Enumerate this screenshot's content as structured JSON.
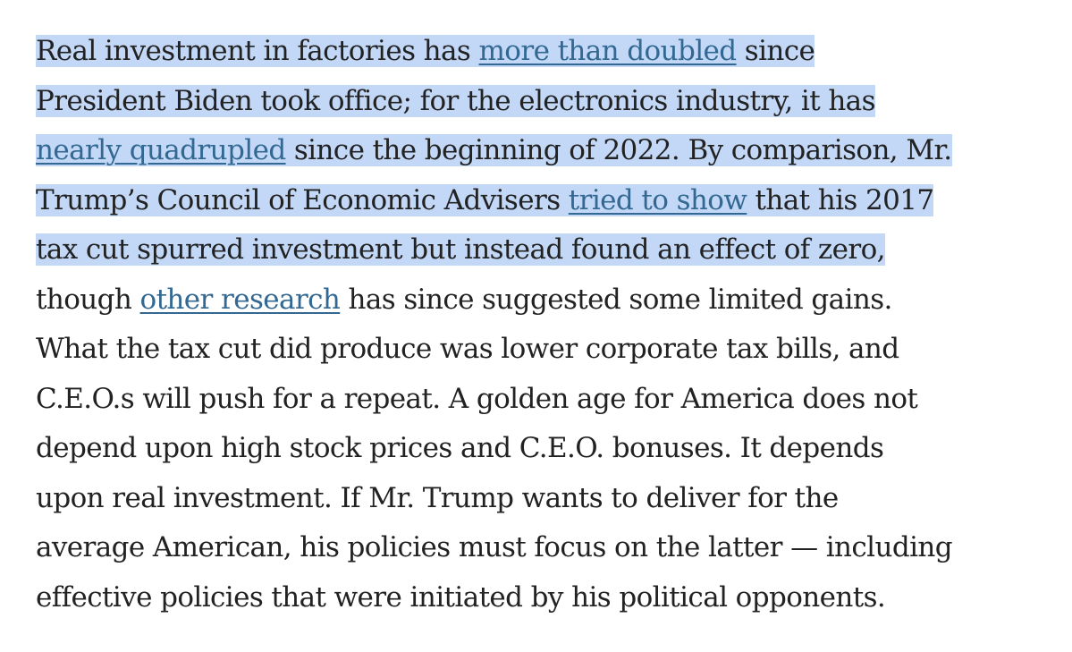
{
  "article": {
    "p1": "Real investment in factories has ",
    "link_doubled": "more than doubled",
    "p2": " since",
    "l2": "President Biden took office; for the electronics industry, it has",
    "link_quadrupled": "nearly quadrupled",
    "p3": " since the beginning of 2022. By comparison, Mr.",
    "p4": "Trump’s Council of Economic Advisers ",
    "link_tried": "tried to show",
    "p5": " that his 2017",
    "l5": "tax cut spurred investment but instead found an effect of zero,",
    "p6": "though ",
    "link_research": "other research",
    "p7": " has since suggested some limited gains.",
    "l7": "What the tax cut did produce was lower corporate tax bills, and",
    "l8": "C.E.O.s will push for a repeat. A golden age for America does not",
    "l9": "depend upon high stock prices and C.E.O. bonuses. It depends",
    "l10": "upon real investment. If Mr. Trump wants to deliver for the",
    "l11": "average American, his policies must focus on the latter — including",
    "l12": "effective policies that were initiated by his political opponents."
  },
  "colors": {
    "text": "#222222",
    "link": "#326891",
    "highlight": "#c3d8f7"
  }
}
